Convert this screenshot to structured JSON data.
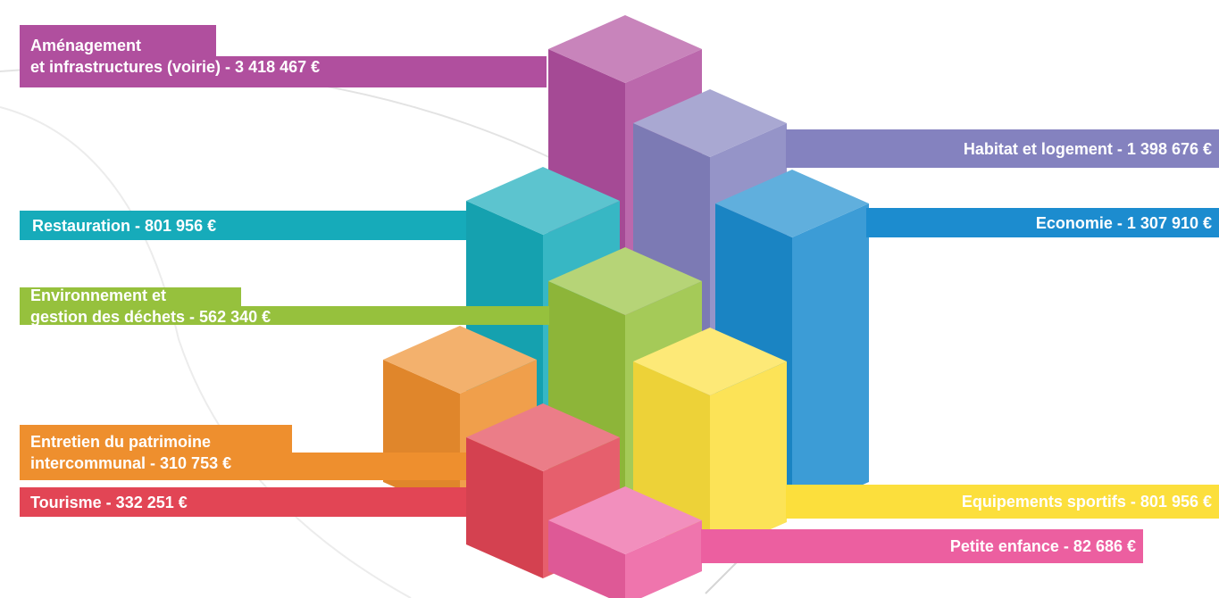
{
  "chart_data": {
    "type": "bar",
    "title": "",
    "currency": "€",
    "categories": [
      {
        "key": "amenagement",
        "label": [
          "Aménagement",
          "et infrastructures (voirie) - 3 418 467 €"
        ],
        "value": 3418467,
        "color": "#B04F9E"
      },
      {
        "key": "habitat",
        "label": [
          "Habitat et logement - 1 398 676 €"
        ],
        "value": 1398676,
        "color": "#8482BF"
      },
      {
        "key": "restauration",
        "label": [
          "Restauration - 801 956 €"
        ],
        "value": 801956,
        "color": "#16ABBA"
      },
      {
        "key": "economie",
        "label": [
          "Economie - 1 307 910 €"
        ],
        "value": 1307910,
        "color": "#1C8CCF"
      },
      {
        "key": "environnement",
        "label": [
          "Environnement et",
          "gestion des déchets - 562 340 €"
        ],
        "value": 562340,
        "color": "#96C13D"
      },
      {
        "key": "entretien",
        "label": [
          "Entretien du patrimoine",
          "intercommunal - 310 753 €"
        ],
        "value": 310753,
        "color": "#EE8F2E"
      },
      {
        "key": "tourisme",
        "label": [
          "Tourisme - 332 251 €"
        ],
        "value": 332251,
        "color": "#E24555"
      },
      {
        "key": "equipements",
        "label": [
          "Equipements sportifs - 801 956 €"
        ],
        "value": 801956,
        "color": "#FCDF3C"
      },
      {
        "key": "petite_enfance",
        "label": [
          "Petite enfance - 82 686 €"
        ],
        "value": 82686,
        "color": "#EC5FA0"
      }
    ]
  }
}
